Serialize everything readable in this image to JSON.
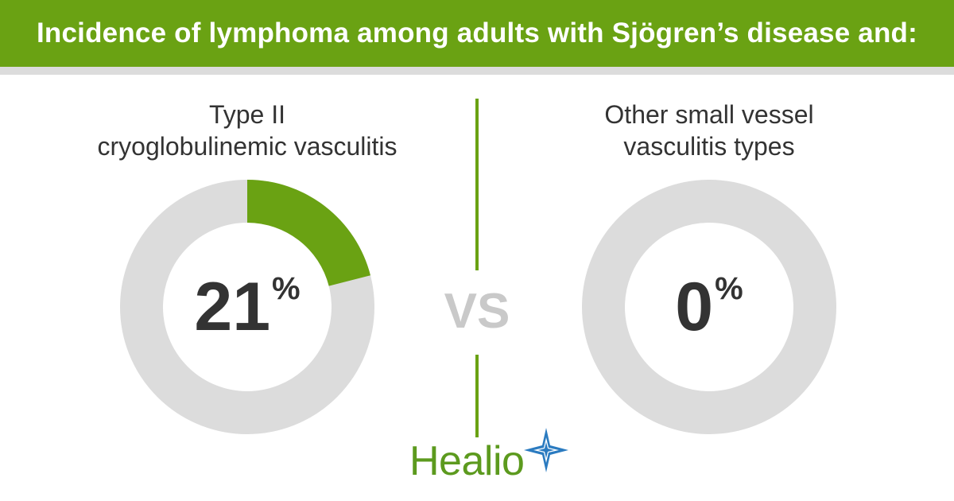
{
  "header": {
    "title": "Incidence of lymphoma among adults with Sjögren’s disease and:"
  },
  "vs_label": "VS",
  "brand": {
    "name": "Healio"
  },
  "colors": {
    "accent": "#6aa213",
    "track": "#dcdcdc",
    "text": "#333333",
    "vs": "#c9c9c9",
    "logo_star": "#2b7bc0"
  },
  "chart_data": [
    {
      "type": "pie",
      "label_lines": [
        "Type II",
        "cryoglobulinemic vasculitis"
      ],
      "value": 21,
      "value_display": "21",
      "unit": "%",
      "max": 100
    },
    {
      "type": "pie",
      "label_lines": [
        "Other small vessel",
        "vasculitis types"
      ],
      "value": 0,
      "value_display": "0",
      "unit": "%",
      "max": 100
    }
  ]
}
